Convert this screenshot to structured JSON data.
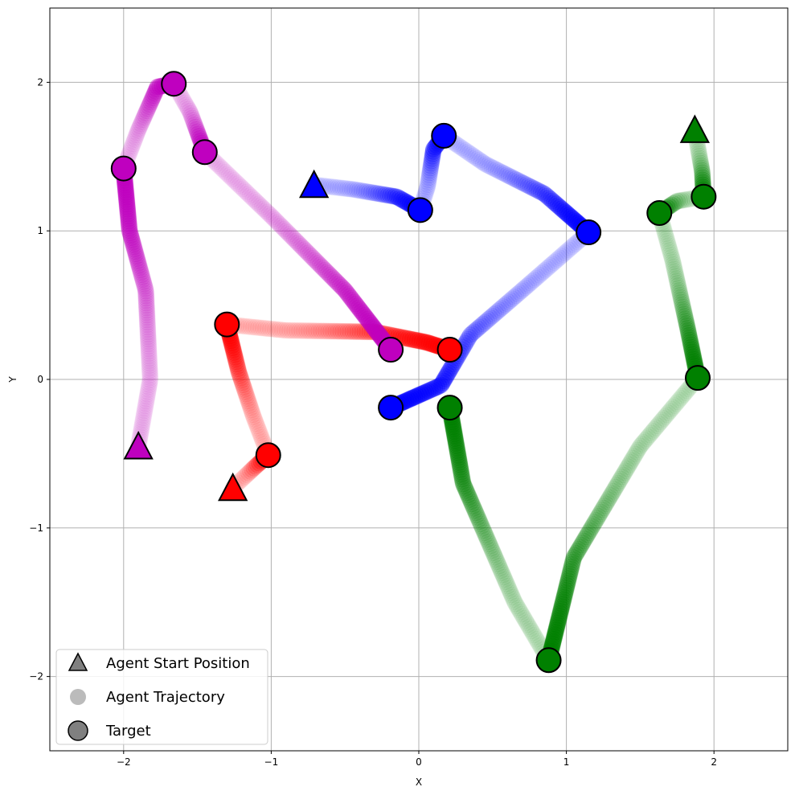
{
  "chart_data": {
    "type": "scatter",
    "xlabel": "X",
    "ylabel": "Y",
    "xlim": [
      -2.5,
      2.5
    ],
    "ylim": [
      -2.5,
      2.5
    ],
    "xticks": [
      -2,
      -1,
      0,
      1,
      2
    ],
    "yticks": [
      -2,
      -1,
      0,
      1,
      2
    ],
    "xtick_labels": [
      "−2",
      "−1",
      "0",
      "1",
      "2"
    ],
    "ytick_labels": [
      "−2",
      "−1",
      "0",
      "1",
      "2"
    ],
    "grid": true,
    "legend": {
      "placement": "lower-left",
      "entries": [
        {
          "label": "Agent Start Position",
          "marker": "triangle",
          "color": "#808080"
        },
        {
          "label": "Agent Trajectory",
          "marker": "dot",
          "color": "#bbbbbb"
        },
        {
          "label": "Target",
          "marker": "circle",
          "color": "#808080"
        }
      ]
    },
    "agents": [
      {
        "color": "#0000ff",
        "start": [
          -0.71,
          1.31
        ],
        "targets": [
          [
            0.01,
            1.14
          ],
          [
            0.17,
            1.64
          ],
          [
            1.15,
            0.99
          ],
          [
            -0.19,
            -0.19
          ]
        ],
        "segments": [
          {
            "path": [
              [
                -0.71,
                1.31
              ],
              [
                -0.45,
                1.28
              ],
              [
                -0.15,
                1.23
              ],
              [
                0.01,
                1.14
              ]
            ]
          },
          {
            "path": [
              [
                0.01,
                1.14
              ],
              [
                0.06,
                1.3
              ],
              [
                0.1,
                1.55
              ],
              [
                0.17,
                1.64
              ]
            ]
          },
          {
            "path": [
              [
                0.17,
                1.64
              ],
              [
                0.45,
                1.45
              ],
              [
                0.85,
                1.25
              ],
              [
                1.15,
                0.99
              ]
            ]
          },
          {
            "path": [
              [
                1.15,
                0.99
              ],
              [
                0.7,
                0.6
              ],
              [
                0.35,
                0.3
              ],
              [
                0.15,
                -0.04
              ],
              [
                -0.19,
                -0.19
              ]
            ]
          }
        ]
      },
      {
        "color": "#ff0000",
        "start": [
          -1.26,
          -0.73
        ],
        "targets": [
          [
            -1.02,
            -0.51
          ],
          [
            -1.3,
            0.37
          ],
          [
            0.21,
            0.2
          ]
        ],
        "segments": [
          {
            "path": [
              [
                -1.26,
                -0.73
              ],
              [
                -1.1,
                -0.58
              ],
              [
                -1.02,
                -0.51
              ]
            ]
          },
          {
            "path": [
              [
                -1.02,
                -0.51
              ],
              [
                -1.12,
                -0.25
              ],
              [
                -1.22,
                0.05
              ],
              [
                -1.3,
                0.37
              ]
            ]
          },
          {
            "path": [
              [
                -1.3,
                0.37
              ],
              [
                -0.9,
                0.33
              ],
              [
                -0.3,
                0.32
              ],
              [
                0.05,
                0.25
              ],
              [
                0.21,
                0.2
              ]
            ]
          }
        ]
      },
      {
        "color": "#bf00bf",
        "start": [
          -1.9,
          -0.45
        ],
        "targets": [
          [
            -2.0,
            1.42
          ],
          [
            -1.66,
            1.99
          ],
          [
            -1.45,
            1.53
          ],
          [
            -0.19,
            0.2
          ]
        ],
        "segments": [
          {
            "path": [
              [
                -1.9,
                -0.45
              ],
              [
                -1.82,
                0.0
              ],
              [
                -1.85,
                0.6
              ],
              [
                -1.96,
                1.0
              ],
              [
                -2.0,
                1.42
              ]
            ]
          },
          {
            "path": [
              [
                -2.0,
                1.42
              ],
              [
                -1.9,
                1.68
              ],
              [
                -1.77,
                1.97
              ],
              [
                -1.66,
                1.99
              ]
            ]
          },
          {
            "path": [
              [
                -1.66,
                1.99
              ],
              [
                -1.55,
                1.8
              ],
              [
                -1.45,
                1.53
              ]
            ]
          },
          {
            "path": [
              [
                -1.45,
                1.53
              ],
              [
                -1.0,
                1.1
              ],
              [
                -0.5,
                0.6
              ],
              [
                -0.19,
                0.2
              ]
            ]
          }
        ]
      },
      {
        "color": "#008000",
        "start": [
          1.87,
          1.68
        ],
        "targets": [
          [
            1.93,
            1.23
          ],
          [
            1.63,
            1.12
          ],
          [
            1.89,
            0.01
          ],
          [
            0.88,
            -1.89
          ],
          [
            0.21,
            -0.19
          ]
        ],
        "segments": [
          {
            "path": [
              [
                1.87,
                1.68
              ],
              [
                1.92,
                1.4
              ],
              [
                1.93,
                1.23
              ]
            ]
          },
          {
            "path": [
              [
                1.93,
                1.23
              ],
              [
                1.75,
                1.2
              ],
              [
                1.63,
                1.12
              ]
            ]
          },
          {
            "path": [
              [
                1.63,
                1.12
              ],
              [
                1.72,
                0.8
              ],
              [
                1.82,
                0.35
              ],
              [
                1.89,
                0.01
              ]
            ]
          },
          {
            "path": [
              [
                1.89,
                0.01
              ],
              [
                1.5,
                -0.45
              ],
              [
                1.05,
                -1.2
              ],
              [
                0.88,
                -1.89
              ]
            ]
          },
          {
            "path": [
              [
                0.88,
                -1.89
              ],
              [
                0.65,
                -1.5
              ],
              [
                0.3,
                -0.7
              ],
              [
                0.21,
                -0.19
              ]
            ]
          }
        ]
      }
    ]
  }
}
